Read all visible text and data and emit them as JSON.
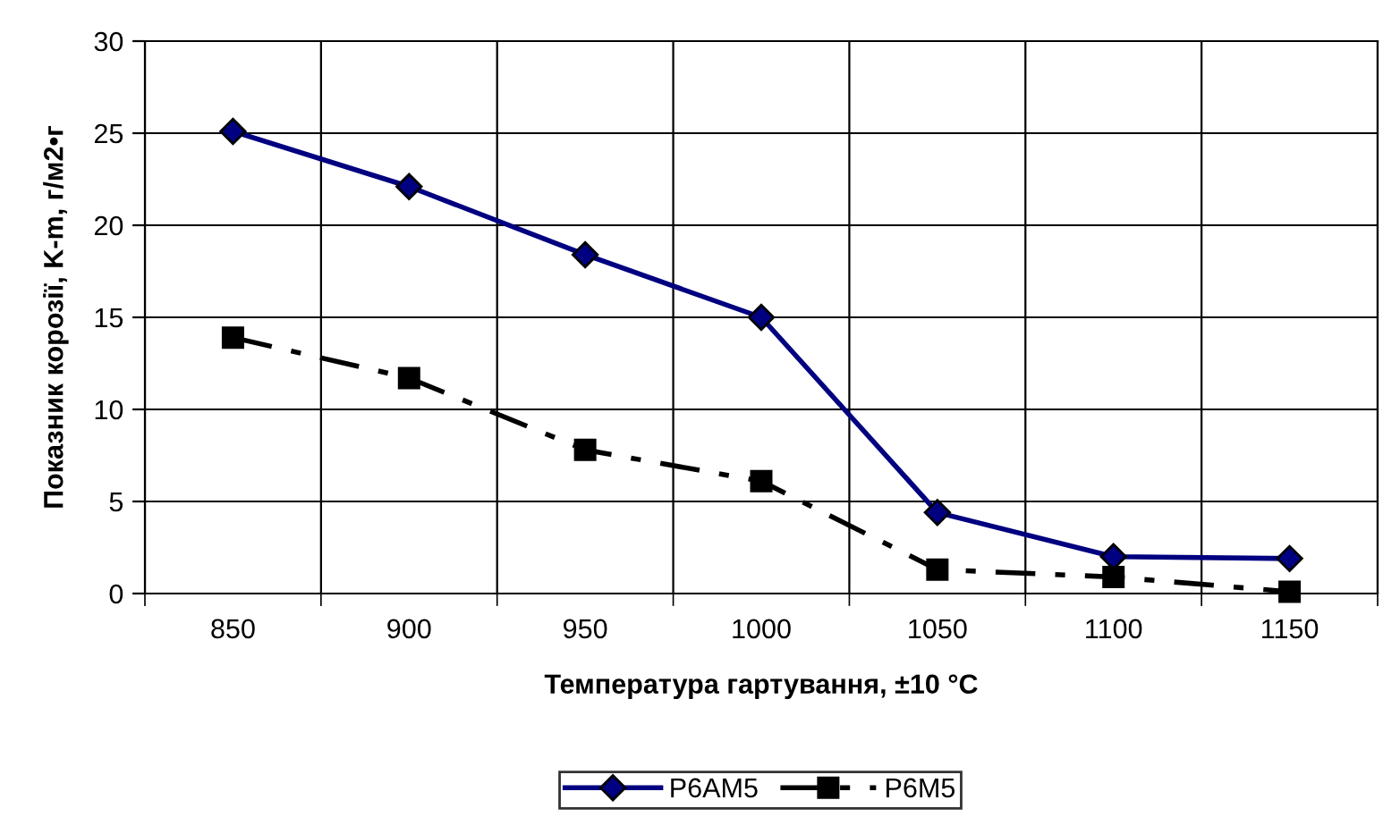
{
  "chart_data": {
    "type": "line",
    "xlabel": "Температура гартування, ±10 °C",
    "ylabel": "Показник корозії, K-m, г/м2•г",
    "categories": [
      "850",
      "900",
      "950",
      "1000",
      "1050",
      "1100",
      "1150"
    ],
    "series": [
      {
        "name": "P6AM5",
        "color": "#000080",
        "values": [
          25.1,
          22.1,
          18.4,
          15.0,
          4.4,
          2.0,
          1.9
        ],
        "marker": "diamond",
        "line_style": "solid"
      },
      {
        "name": "P6M5",
        "color": "#000000",
        "values": [
          13.9,
          11.7,
          7.8,
          6.1,
          1.3,
          0.9,
          0.1
        ],
        "marker": "square",
        "line_style": "dashed"
      }
    ],
    "ylim": [
      0,
      30
    ],
    "yticks": [
      0,
      5,
      10,
      15,
      20,
      25,
      30
    ],
    "grid": true,
    "legend": "bottom"
  }
}
